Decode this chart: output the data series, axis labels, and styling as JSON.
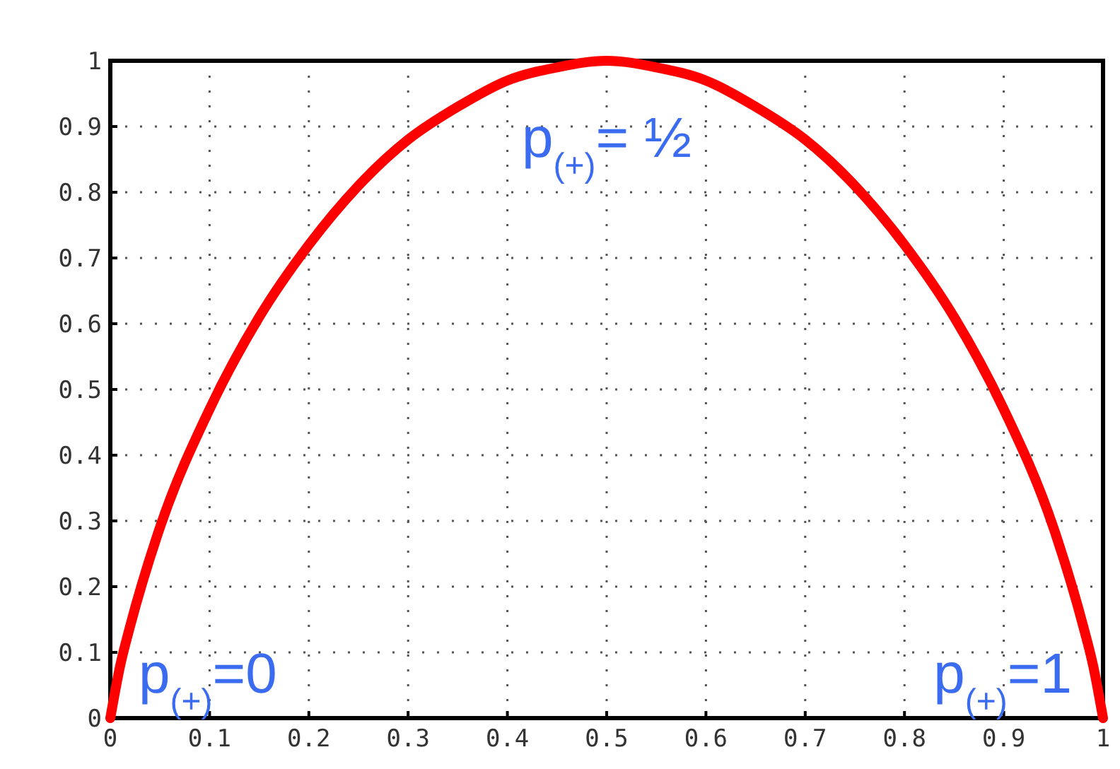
{
  "chart_data": {
    "type": "line",
    "xlim": [
      0,
      1
    ],
    "ylim": [
      0,
      1
    ],
    "xticks": [
      0,
      0.1,
      0.2,
      0.3,
      0.4,
      0.5,
      0.6,
      0.7,
      0.8,
      0.9,
      1
    ],
    "yticks": [
      0,
      0.1,
      0.2,
      0.3,
      0.4,
      0.5,
      0.6,
      0.7,
      0.8,
      0.9,
      1
    ],
    "grid": true,
    "line_style": "solid",
    "marker": "none",
    "x": [
      0,
      0.01,
      0.02,
      0.05,
      0.1,
      0.15,
      0.2,
      0.25,
      0.3,
      0.35,
      0.4,
      0.45,
      0.5,
      0.55,
      0.6,
      0.65,
      0.7,
      0.75,
      0.8,
      0.85,
      0.9,
      0.95,
      0.98,
      0.99,
      1
    ],
    "series": [
      {
        "color": "#ff0000",
        "values": [
          0,
          0.08,
          0.14,
          0.29,
          0.47,
          0.61,
          0.72,
          0.81,
          0.88,
          0.93,
          0.97,
          0.99,
          1,
          0.99,
          0.97,
          0.93,
          0.88,
          0.81,
          0.72,
          0.61,
          0.47,
          0.29,
          0.14,
          0.08,
          0
        ]
      }
    ],
    "annotations": [
      {
        "text": "p$_{(+)}$= ½",
        "x": 0.5,
        "y": 1
      },
      {
        "text": "p$_{(+)}$=0",
        "x": 0,
        "y": 0
      },
      {
        "text": "p$_{(+)}$=1",
        "x": 1,
        "y": 0
      }
    ]
  }
}
